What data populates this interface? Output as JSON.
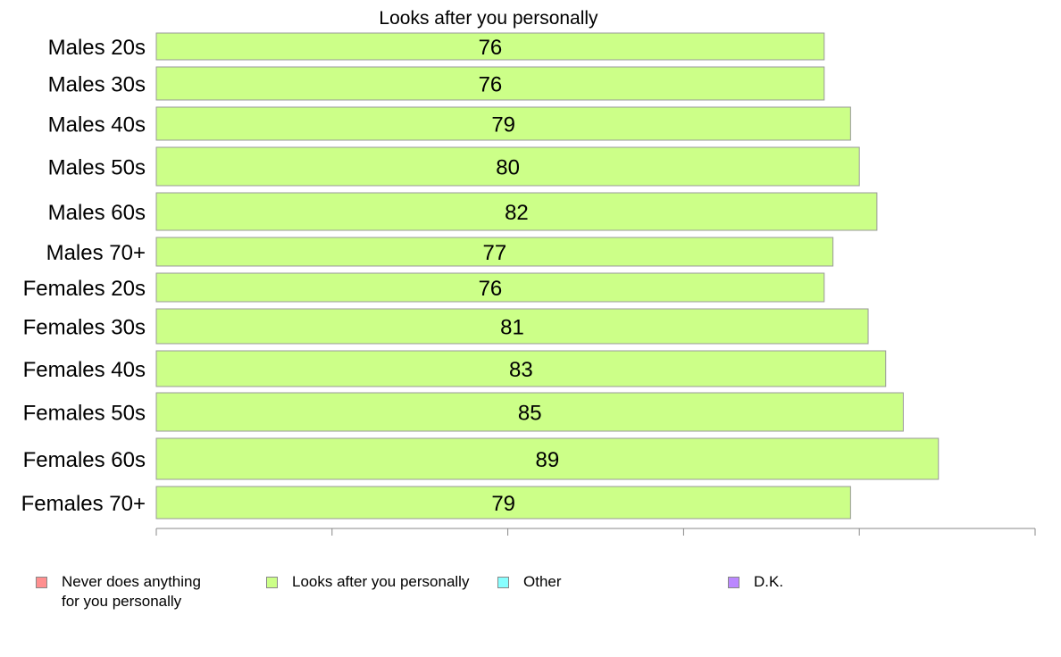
{
  "chart_data": {
    "type": "bar",
    "orientation": "horizontal",
    "title": "Looks after you personally",
    "categories": [
      "Males 20s",
      "Males 30s",
      "Males 40s",
      "Males 50s",
      "Males 60s",
      "Males 70+",
      "Females 20s",
      "Females 30s",
      "Females 40s",
      "Females 50s",
      "Females 60s",
      "Females 70+"
    ],
    "series": [
      {
        "name": "Looks after you personally",
        "values": [
          76,
          76,
          79,
          80,
          82,
          77,
          76,
          81,
          83,
          85,
          89,
          79
        ],
        "color": "#ccff88"
      }
    ],
    "data_labels": [
      "76",
      "76",
      "79",
      "80",
      "82",
      "77",
      "76",
      "81",
      "83",
      "85",
      "89",
      "79"
    ],
    "x_ticks": [
      "0",
      "20",
      "40",
      "60",
      "80",
      "100"
    ],
    "xlim": [
      0,
      100
    ],
    "grid": false,
    "legend_position": "bottom"
  },
  "legend": [
    {
      "label": "Never does anything\nfor you personally",
      "color": "#ff8f8f"
    },
    {
      "label": "Looks after you personally",
      "color": "#ccff88"
    },
    {
      "label": "Other",
      "color": "#88ffff"
    },
    {
      "label": "D.K.",
      "color": "#bb88ff"
    }
  ]
}
